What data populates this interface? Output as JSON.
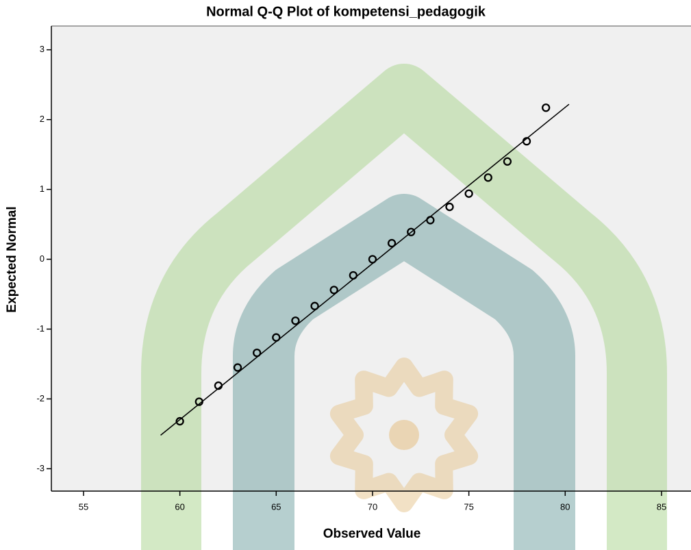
{
  "chart_data": {
    "type": "scatter",
    "title": "Normal Q-Q Plot of kompetensi_pedagogik",
    "x_label": "Observed Value",
    "y_label": "Expected Normal",
    "series": [
      {
        "color": "#000000",
        "x": [
          60,
          61,
          62,
          63,
          64,
          65,
          66,
          67,
          68,
          69,
          70,
          71,
          72,
          73,
          74,
          75,
          76,
          77,
          78,
          79
        ],
        "values": [
          -2.32,
          -2.04,
          -1.81,
          -1.55,
          -1.34,
          -1.12,
          -0.88,
          -0.67,
          -0.44,
          -0.23,
          0,
          0.23,
          0.39,
          0.56,
          0.75,
          0.94,
          1.17,
          1.4,
          1.69,
          2.17
        ]
      },
      {
        "type": "line",
        "color": "#000000",
        "x": [
          59,
          80.2
        ],
        "values": [
          -2.52,
          2.22
        ]
      }
    ],
    "xlim": [
      53.33,
      86.53
    ],
    "ylim": [
      -3.32,
      3.34
    ],
    "xticks": [
      55,
      60,
      65,
      70,
      75,
      80,
      85
    ],
    "yticks": [
      -3,
      -2,
      -1,
      0,
      1,
      2,
      3
    ]
  }
}
